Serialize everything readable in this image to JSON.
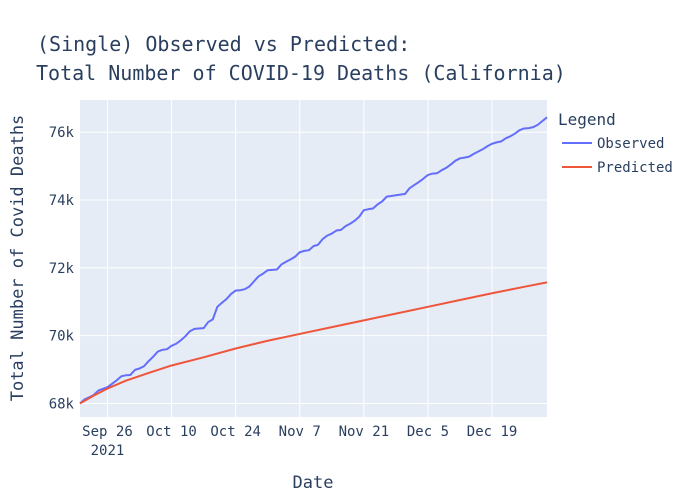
{
  "chart_data": {
    "type": "line",
    "title_lines": [
      "(Single) Observed vs Predicted:",
      "Total Number of COVID-19 Deaths (California)"
    ],
    "xlabel": "Date",
    "ylabel": "Total Number of Covid Deaths",
    "x_range": [
      "2021-09-20",
      "2021-12-31"
    ],
    "ylim": [
      67600,
      76950
    ],
    "x_ticks": [
      {
        "date": "2021-09-26",
        "label": "Sep 26",
        "sublabel": "2021"
      },
      {
        "date": "2021-10-10",
        "label": "Oct 10",
        "sublabel": ""
      },
      {
        "date": "2021-10-24",
        "label": "Oct 24",
        "sublabel": ""
      },
      {
        "date": "2021-11-07",
        "label": "Nov 7",
        "sublabel": ""
      },
      {
        "date": "2021-11-21",
        "label": "Nov 21",
        "sublabel": ""
      },
      {
        "date": "2021-12-05",
        "label": "Dec 5",
        "sublabel": ""
      },
      {
        "date": "2021-12-19",
        "label": "Dec 19",
        "sublabel": ""
      }
    ],
    "y_ticks": [
      {
        "value": 68000,
        "label": "68k"
      },
      {
        "value": 70000,
        "label": "70k"
      },
      {
        "value": 72000,
        "label": "72k"
      },
      {
        "value": 74000,
        "label": "74k"
      },
      {
        "value": 76000,
        "label": "76k"
      }
    ],
    "grid": true,
    "plot_background": "#e5ecf6",
    "legend": {
      "title": "Legend",
      "placement": "right"
    },
    "series": [
      {
        "name": "Observed",
        "color": "#636efa",
        "points": [
          [
            "2021-09-20",
            68000
          ],
          [
            "2021-09-21",
            68120
          ],
          [
            "2021-09-22",
            68180
          ],
          [
            "2021-09-23",
            68250
          ],
          [
            "2021-09-24",
            68380
          ],
          [
            "2021-09-25",
            68430
          ],
          [
            "2021-09-26",
            68480
          ],
          [
            "2021-09-27",
            68580
          ],
          [
            "2021-09-28",
            68680
          ],
          [
            "2021-09-29",
            68800
          ],
          [
            "2021-09-30",
            68830
          ],
          [
            "2021-10-01",
            68840
          ],
          [
            "2021-10-02",
            68990
          ],
          [
            "2021-10-03",
            69030
          ],
          [
            "2021-10-04",
            69100
          ],
          [
            "2021-10-05",
            69250
          ],
          [
            "2021-10-06",
            69380
          ],
          [
            "2021-10-07",
            69530
          ],
          [
            "2021-10-08",
            69580
          ],
          [
            "2021-10-09",
            69600
          ],
          [
            "2021-10-10",
            69700
          ],
          [
            "2021-10-11",
            69760
          ],
          [
            "2021-10-12",
            69860
          ],
          [
            "2021-10-13",
            69980
          ],
          [
            "2021-10-14",
            70130
          ],
          [
            "2021-10-15",
            70200
          ],
          [
            "2021-10-16",
            70210
          ],
          [
            "2021-10-17",
            70220
          ],
          [
            "2021-10-18",
            70400
          ],
          [
            "2021-10-19",
            70480
          ],
          [
            "2021-10-20",
            70850
          ],
          [
            "2021-10-21",
            70970
          ],
          [
            "2021-10-22",
            71080
          ],
          [
            "2021-10-23",
            71230
          ],
          [
            "2021-10-24",
            71330
          ],
          [
            "2021-10-25",
            71340
          ],
          [
            "2021-10-26",
            71370
          ],
          [
            "2021-10-27",
            71450
          ],
          [
            "2021-10-28",
            71600
          ],
          [
            "2021-10-29",
            71750
          ],
          [
            "2021-10-30",
            71830
          ],
          [
            "2021-10-31",
            71930
          ],
          [
            "2021-11-01",
            71940
          ],
          [
            "2021-11-02",
            71950
          ],
          [
            "2021-11-03",
            72100
          ],
          [
            "2021-11-04",
            72180
          ],
          [
            "2021-11-05",
            72250
          ],
          [
            "2021-11-06",
            72330
          ],
          [
            "2021-11-07",
            72460
          ],
          [
            "2021-11-08",
            72500
          ],
          [
            "2021-11-09",
            72520
          ],
          [
            "2021-11-10",
            72640
          ],
          [
            "2021-11-11",
            72680
          ],
          [
            "2021-11-12",
            72850
          ],
          [
            "2021-11-13",
            72950
          ],
          [
            "2021-11-14",
            73010
          ],
          [
            "2021-11-15",
            73100
          ],
          [
            "2021-11-16",
            73120
          ],
          [
            "2021-11-17",
            73230
          ],
          [
            "2021-11-18",
            73300
          ],
          [
            "2021-11-19",
            73390
          ],
          [
            "2021-11-20",
            73510
          ],
          [
            "2021-11-21",
            73700
          ],
          [
            "2021-11-22",
            73730
          ],
          [
            "2021-11-23",
            73750
          ],
          [
            "2021-11-24",
            73870
          ],
          [
            "2021-11-25",
            73960
          ],
          [
            "2021-11-26",
            74100
          ],
          [
            "2021-11-27",
            74120
          ],
          [
            "2021-11-28",
            74140
          ],
          [
            "2021-11-29",
            74160
          ],
          [
            "2021-11-30",
            74180
          ],
          [
            "2021-12-01",
            74350
          ],
          [
            "2021-12-02",
            74440
          ],
          [
            "2021-12-03",
            74530
          ],
          [
            "2021-12-04",
            74630
          ],
          [
            "2021-12-05",
            74740
          ],
          [
            "2021-12-06",
            74780
          ],
          [
            "2021-12-07",
            74790
          ],
          [
            "2021-12-08",
            74880
          ],
          [
            "2021-12-09",
            74950
          ],
          [
            "2021-12-10",
            75050
          ],
          [
            "2021-12-11",
            75160
          ],
          [
            "2021-12-12",
            75230
          ],
          [
            "2021-12-13",
            75250
          ],
          [
            "2021-12-14",
            75280
          ],
          [
            "2021-12-15",
            75360
          ],
          [
            "2021-12-16",
            75430
          ],
          [
            "2021-12-17",
            75500
          ],
          [
            "2021-12-18",
            75590
          ],
          [
            "2021-12-19",
            75660
          ],
          [
            "2021-12-20",
            75700
          ],
          [
            "2021-12-21",
            75730
          ],
          [
            "2021-12-22",
            75820
          ],
          [
            "2021-12-23",
            75880
          ],
          [
            "2021-12-24",
            75960
          ],
          [
            "2021-12-25",
            76060
          ],
          [
            "2021-12-26",
            76110
          ],
          [
            "2021-12-27",
            76120
          ],
          [
            "2021-12-28",
            76150
          ],
          [
            "2021-12-29",
            76220
          ],
          [
            "2021-12-30",
            76330
          ],
          [
            "2021-12-31",
            76440
          ]
        ]
      },
      {
        "name": "Predicted",
        "color": "#ef553b",
        "points": [
          [
            "2021-09-20",
            68000
          ],
          [
            "2021-09-23",
            68230
          ],
          [
            "2021-09-26",
            68440
          ],
          [
            "2021-09-30",
            68670
          ],
          [
            "2021-10-05",
            68900
          ],
          [
            "2021-10-10",
            69120
          ],
          [
            "2021-10-17",
            69360
          ],
          [
            "2021-10-24",
            69620
          ],
          [
            "2021-10-31",
            69850
          ],
          [
            "2021-11-07",
            70050
          ],
          [
            "2021-11-14",
            70250
          ],
          [
            "2021-11-21",
            70450
          ],
          [
            "2021-11-28",
            70650
          ],
          [
            "2021-12-05",
            70850
          ],
          [
            "2021-12-12",
            71050
          ],
          [
            "2021-12-19",
            71250
          ],
          [
            "2021-12-26",
            71440
          ],
          [
            "2021-12-31",
            71570
          ]
        ]
      }
    ]
  }
}
